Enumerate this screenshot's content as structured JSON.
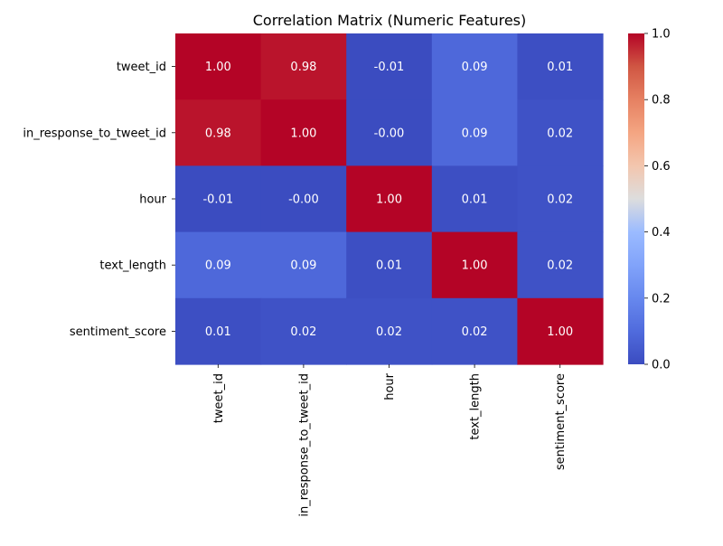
{
  "chart_data": {
    "type": "heatmap",
    "title": "Correlation Matrix (Numeric Features)",
    "xlabel": "",
    "ylabel": "",
    "rows": [
      "tweet_id",
      "in_response_to_tweet_id",
      "hour",
      "text_length",
      "sentiment_score"
    ],
    "columns": [
      "tweet_id",
      "in_response_to_tweet_id",
      "hour",
      "text_length",
      "sentiment_score"
    ],
    "values": [
      [
        1.0,
        0.98,
        -0.01,
        0.09,
        0.01
      ],
      [
        0.98,
        1.0,
        -0.0,
        0.09,
        0.02
      ],
      [
        -0.01,
        -0.0,
        1.0,
        0.01,
        0.02
      ],
      [
        0.09,
        0.09,
        0.01,
        1.0,
        0.02
      ],
      [
        0.01,
        0.02,
        0.02,
        0.02,
        1.0
      ]
    ],
    "labels": [
      [
        "1.00",
        "0.98",
        "-0.01",
        "0.09",
        "0.01"
      ],
      [
        "0.98",
        "1.00",
        "-0.00",
        "0.09",
        "0.02"
      ],
      [
        "-0.01",
        "-0.00",
        "1.00",
        "0.01",
        "0.02"
      ],
      [
        "0.09",
        "0.09",
        "0.01",
        "1.00",
        "0.02"
      ],
      [
        "0.01",
        "0.02",
        "0.02",
        "0.02",
        "1.00"
      ]
    ],
    "colormap": "coolwarm",
    "vmin": 0.0,
    "vmax": 1.0,
    "colorbar_ticks": [
      "0.0",
      "0.2",
      "0.4",
      "0.6",
      "0.8",
      "1.0"
    ],
    "colorbar_tick_values": [
      0.0,
      0.2,
      0.4,
      0.6,
      0.8,
      1.0
    ],
    "grid": false,
    "legend": "colorbar-right"
  }
}
